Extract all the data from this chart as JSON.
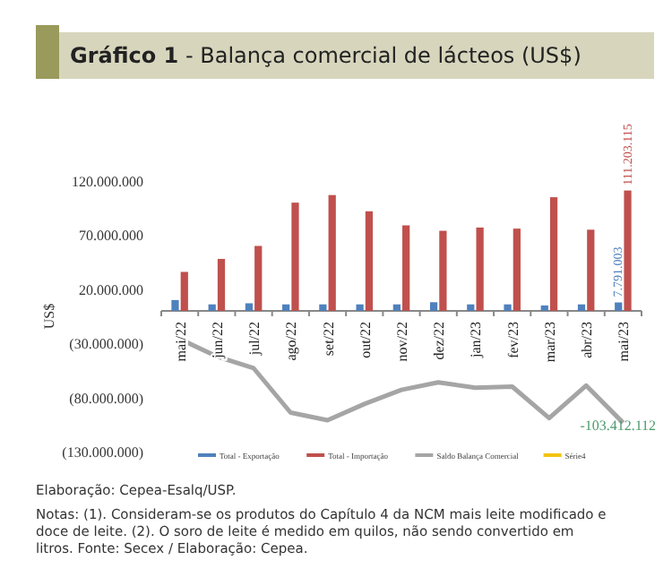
{
  "chart_data": {
    "type": "bar",
    "title": "Gráfico 1 - Balança comercial de lácteos (US$)",
    "ylabel": "US$",
    "categories": [
      "mai/22",
      "jun/22",
      "jul/22",
      "ago/22",
      "set/22",
      "out/22",
      "nov/22",
      "dez/22",
      "jan/23",
      "fev/23",
      "mar/23",
      "abr/23",
      "mai/23"
    ],
    "series": [
      {
        "name": "Total - Exportação",
        "color": "#4f81bd",
        "values": [
          10000000,
          6000000,
          7000000,
          6000000,
          6000000,
          6000000,
          6000000,
          8000000,
          6000000,
          6000000,
          5000000,
          6000000,
          7791003
        ],
        "value_labels": [
          null,
          null,
          null,
          null,
          null,
          null,
          null,
          null,
          null,
          null,
          null,
          null,
          "7.791.003"
        ]
      },
      {
        "name": "Total - Importação",
        "color": "#c0504d",
        "values": [
          36000000,
          48000000,
          60000000,
          100000000,
          107000000,
          92000000,
          79000000,
          74000000,
          77000000,
          76000000,
          105000000,
          75000000,
          111203115
        ],
        "value_labels": [
          null,
          null,
          null,
          null,
          null,
          null,
          null,
          null,
          null,
          null,
          null,
          null,
          "111.203.115"
        ]
      },
      {
        "name": "Saldo Balança Comercial",
        "type": "line",
        "color": "#a5a5a5",
        "values": [
          -26000000,
          -42000000,
          -53000000,
          -94000000,
          -101000000,
          -86000000,
          -73000000,
          -66000000,
          -71000000,
          -70000000,
          -99000000,
          -69000000,
          -103412112
        ],
        "value_labels": [
          null,
          null,
          null,
          null,
          null,
          null,
          null,
          null,
          null,
          null,
          null,
          null,
          "-103.412.112"
        ]
      },
      {
        "name": "Série4",
        "type": "line",
        "color": "#f2c314",
        "values": [
          null,
          null,
          null,
          null,
          null,
          null,
          null,
          null,
          null,
          null,
          null,
          null,
          null
        ]
      }
    ],
    "ylim": [
      -130000000,
      120000000
    ],
    "yticks": [
      {
        "value": -130000000,
        "label": "(130.000.000)"
      },
      {
        "value": -80000000,
        "label": "(80.000.000)"
      },
      {
        "value": -30000000,
        "label": "(30.000.000)"
      },
      {
        "value": 20000000,
        "label": "20.000.000"
      },
      {
        "value": 70000000,
        "label": "70.000.000"
      },
      {
        "value": 120000000,
        "label": "120.000.000"
      }
    ],
    "grid": false,
    "legend": "bottom",
    "marker": "none",
    "line_style": "solid",
    "annotations": [
      "Elaboração: Cepea-Esalq/USP.",
      "Notas: (1). Consideram-se os produtos do Capítulo 4 da NCM mais leite modificado e doce de leite.  (2). O soro de leite é medido em quilos, não sendo convertido em litros. Fonte: Secex / Elaboração: Cepea."
    ]
  }
}
